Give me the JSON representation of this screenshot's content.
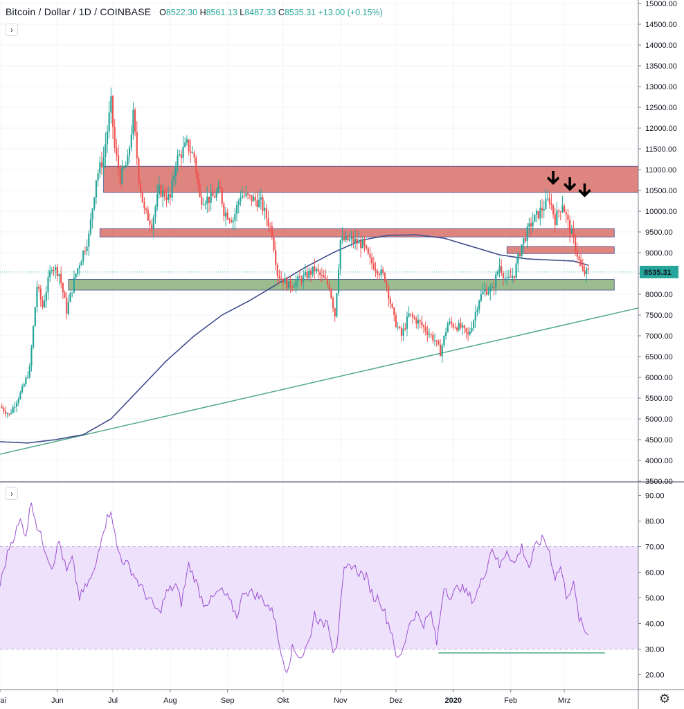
{
  "header": {
    "symbol": "Bitcoin / Dollar",
    "interval": "1D",
    "exchange": "COINBASE",
    "o_label": "O",
    "o": "8522.30",
    "h_label": "H",
    "h": "8561.13",
    "l_label": "L",
    "l": "8487.33",
    "c_label": "C",
    "c": "8535.31",
    "change": "+13.00 (+0.15%)"
  },
  "price_tag": "8535.31",
  "colors": {
    "up": "#26a69a",
    "down": "#ef5350",
    "ma": "#3f4c8c",
    "trend": "#4fa88c",
    "resistance": "#d9706a",
    "support": "#8ab07a",
    "rsi": "#9c4fd0",
    "rsi_band": "#ede1fb"
  },
  "chart_data": [
    {
      "type": "candlestick",
      "ylim": [
        3500,
        15000
      ],
      "y_ticks": [
        "3500.00",
        "4000.00",
        "4500.00",
        "5000.00",
        "5500.00",
        "6000.00",
        "6500.00",
        "7000.00",
        "7500.00",
        "8000.00",
        "8500.00",
        "9000.00",
        "9500.00",
        "10000.00",
        "10500.00",
        "11000.00",
        "11500.00",
        "12000.00",
        "12500.00",
        "13000.00",
        "13500.00",
        "14000.00",
        "14500.00",
        "15000.00"
      ],
      "x_ticks": [
        "Mai",
        "Jun",
        "Jul",
        "Aug",
        "Sep",
        "Okt",
        "Nov",
        "Dez",
        "2020",
        "Feb",
        "Mrz"
      ],
      "x_tick_days": [
        0,
        31,
        61,
        92,
        123,
        153,
        184,
        214,
        245,
        276,
        305
      ],
      "days_shown": [
        0,
        305
      ],
      "close_anchors": [
        [
          0,
          5300
        ],
        [
          5,
          5100
        ],
        [
          12,
          5700
        ],
        [
          16,
          6200
        ],
        [
          20,
          8200
        ],
        [
          23,
          7700
        ],
        [
          28,
          8700
        ],
        [
          32,
          8500
        ],
        [
          36,
          7600
        ],
        [
          41,
          8500
        ],
        [
          48,
          9400
        ],
        [
          52,
          10800
        ],
        [
          56,
          11300
        ],
        [
          60,
          12600
        ],
        [
          62,
          11500
        ],
        [
          65,
          10800
        ],
        [
          69,
          11200
        ],
        [
          72,
          12300
        ],
        [
          75,
          10800
        ],
        [
          78,
          10000
        ],
        [
          82,
          9700
        ],
        [
          86,
          10500
        ],
        [
          92,
          10300
        ],
        [
          95,
          11200
        ],
        [
          101,
          11600
        ],
        [
          105,
          11300
        ],
        [
          108,
          10300
        ],
        [
          114,
          10300
        ],
        [
          119,
          10500
        ],
        [
          121,
          10000
        ],
        [
          126,
          9800
        ],
        [
          130,
          10400
        ],
        [
          136,
          10300
        ],
        [
          141,
          10200
        ],
        [
          147,
          9500
        ],
        [
          150,
          8500
        ],
        [
          156,
          8200
        ],
        [
          164,
          8400
        ],
        [
          170,
          8600
        ],
        [
          178,
          8200
        ],
        [
          181,
          7500
        ],
        [
          184,
          9300
        ],
        [
          190,
          9300
        ],
        [
          196,
          9200
        ],
        [
          200,
          8800
        ],
        [
          208,
          8400
        ],
        [
          213,
          7400
        ],
        [
          217,
          7000
        ],
        [
          221,
          7500
        ],
        [
          227,
          7300
        ],
        [
          231,
          7100
        ],
        [
          235,
          6900
        ],
        [
          238,
          6600
        ],
        [
          242,
          7300
        ],
        [
          249,
          7200
        ],
        [
          253,
          7000
        ],
        [
          256,
          7400
        ],
        [
          259,
          7900
        ],
        [
          262,
          8100
        ],
        [
          266,
          8100
        ],
        [
          270,
          8700
        ],
        [
          274,
          8300
        ],
        [
          278,
          8500
        ],
        [
          282,
          9200
        ],
        [
          287,
          9700
        ],
        [
          292,
          10000
        ],
        [
          297,
          10300
        ],
        [
          300,
          9800
        ],
        [
          304,
          10200
        ],
        [
          307,
          9700
        ],
        [
          310,
          9300
        ],
        [
          313,
          8800
        ],
        [
          315,
          8500
        ],
        [
          318,
          8535
        ]
      ],
      "moving_average": [
        [
          0,
          4450
        ],
        [
          15,
          4420
        ],
        [
          30,
          4500
        ],
        [
          45,
          4620
        ],
        [
          60,
          5000
        ],
        [
          75,
          5700
        ],
        [
          90,
          6400
        ],
        [
          105,
          7000
        ],
        [
          120,
          7500
        ],
        [
          135,
          7850
        ],
        [
          150,
          8250
        ],
        [
          165,
          8650
        ],
        [
          180,
          9000
        ],
        [
          195,
          9300
        ],
        [
          210,
          9420
        ],
        [
          225,
          9430
        ],
        [
          240,
          9350
        ],
        [
          255,
          9150
        ],
        [
          270,
          8950
        ],
        [
          285,
          8850
        ],
        [
          300,
          8820
        ],
        [
          310,
          8800
        ],
        [
          318,
          8700
        ]
      ],
      "trendline": [
        [
          0,
          4150
        ],
        [
          345,
          7670
        ]
      ],
      "resistance_zones": [
        {
          "d0": 56,
          "d1": 345,
          "low": 10450,
          "high": 11080
        },
        {
          "d0": 54,
          "d1": 332,
          "low": 9380,
          "high": 9580
        },
        {
          "d0": 274,
          "d1": 332,
          "low": 8980,
          "high": 9150
        }
      ],
      "support_zones": [
        {
          "d0": 37,
          "d1": 332,
          "low": 8100,
          "high": 8360
        }
      ],
      "arrows": [
        {
          "d": 299,
          "price": 10600
        },
        {
          "d": 308,
          "price": 10450
        },
        {
          "d": 316,
          "price": 10300
        }
      ]
    },
    {
      "type": "line",
      "ylim": [
        15,
        95
      ],
      "y_ticks": [
        "20.00",
        "30.00",
        "40.00",
        "50.00",
        "60.00",
        "70.00",
        "80.00",
        "90.00"
      ],
      "band": [
        30,
        70
      ],
      "rsi_anchors": [
        [
          0,
          55
        ],
        [
          5,
          70
        ],
        [
          11,
          80
        ],
        [
          14,
          75
        ],
        [
          17,
          88
        ],
        [
          20,
          78
        ],
        [
          24,
          70
        ],
        [
          28,
          62
        ],
        [
          32,
          72
        ],
        [
          36,
          60
        ],
        [
          39,
          65
        ],
        [
          43,
          50
        ],
        [
          47,
          55
        ],
        [
          51,
          60
        ],
        [
          55,
          75
        ],
        [
          60,
          85
        ],
        [
          63,
          70
        ],
        [
          66,
          65
        ],
        [
          70,
          62
        ],
        [
          74,
          57
        ],
        [
          78,
          52
        ],
        [
          82,
          48
        ],
        [
          86,
          44
        ],
        [
          90,
          52
        ],
        [
          95,
          55
        ],
        [
          98,
          48
        ],
        [
          102,
          63
        ],
        [
          105,
          58
        ],
        [
          110,
          48
        ],
        [
          114,
          49
        ],
        [
          119,
          53
        ],
        [
          123,
          50
        ],
        [
          128,
          43
        ],
        [
          132,
          53
        ],
        [
          136,
          52
        ],
        [
          141,
          50
        ],
        [
          145,
          47
        ],
        [
          149,
          42
        ],
        [
          151,
          30
        ],
        [
          155,
          22
        ],
        [
          158,
          30
        ],
        [
          163,
          27
        ],
        [
          167,
          33
        ],
        [
          170,
          44
        ],
        [
          174,
          39
        ],
        [
          177,
          42
        ],
        [
          180,
          30
        ],
        [
          182,
          32
        ],
        [
          186,
          60
        ],
        [
          190,
          63
        ],
        [
          194,
          60
        ],
        [
          198,
          58
        ],
        [
          202,
          50
        ],
        [
          205,
          50
        ],
        [
          209,
          42
        ],
        [
          212,
          36
        ],
        [
          215,
          25
        ],
        [
          218,
          30
        ],
        [
          221,
          40
        ],
        [
          225,
          44
        ],
        [
          229,
          40
        ],
        [
          233,
          44
        ],
        [
          236,
          32
        ],
        [
          240,
          55
        ],
        [
          244,
          50
        ],
        [
          248,
          55
        ],
        [
          252,
          52
        ],
        [
          256,
          49
        ],
        [
          260,
          56
        ],
        [
          263,
          62
        ],
        [
          266,
          70
        ],
        [
          270,
          62
        ],
        [
          274,
          69
        ],
        [
          278,
          63
        ],
        [
          282,
          70
        ],
        [
          286,
          62
        ],
        [
          290,
          71
        ],
        [
          294,
          73
        ],
        [
          297,
          68
        ],
        [
          300,
          58
        ],
        [
          303,
          62
        ],
        [
          306,
          51
        ],
        [
          310,
          55
        ],
        [
          313,
          42
        ],
        [
          316,
          37
        ],
        [
          318,
          36
        ]
      ],
      "rsi_trendline": [
        [
          237,
          28.5
        ],
        [
          327,
          28.5
        ]
      ]
    }
  ]
}
